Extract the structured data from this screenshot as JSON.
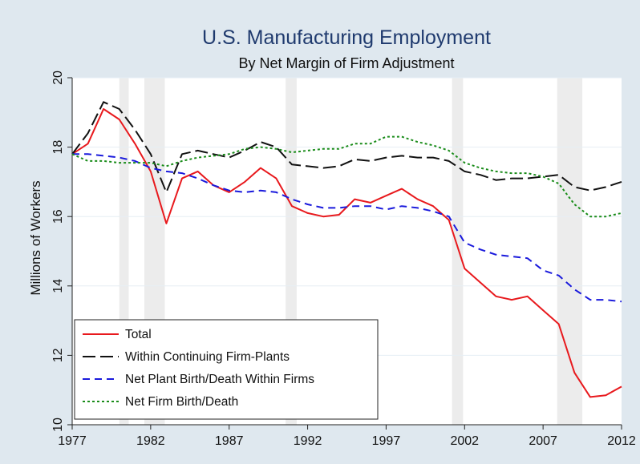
{
  "chart_data": {
    "type": "line",
    "title": "U.S. Manufacturing Employment",
    "subtitle": "By Net Margin of Firm Adjustment",
    "ylabel": "Millions of Workers",
    "xlabel": "",
    "xlim": [
      1977,
      2012
    ],
    "ylim": [
      10,
      20
    ],
    "xticks": [
      "1977",
      "1982",
      "1987",
      "1992",
      "1997",
      "2002",
      "2007",
      "2012"
    ],
    "yticks": [
      "10",
      "12",
      "14",
      "16",
      "18",
      "20"
    ],
    "grid": true,
    "legend_placement": "bottom-left",
    "recessions": [
      [
        1980.0,
        1980.6
      ],
      [
        1981.6,
        1982.9
      ],
      [
        1990.6,
        1991.3
      ],
      [
        2001.2,
        2001.9
      ],
      [
        2007.9,
        2009.5
      ]
    ],
    "x": [
      1977,
      1978,
      1979,
      1980,
      1981,
      1982,
      1983,
      1984,
      1985,
      1986,
      1987,
      1988,
      1989,
      1990,
      1991,
      1992,
      1993,
      1994,
      1995,
      1996,
      1997,
      1998,
      1999,
      2000,
      2001,
      2002,
      2003,
      2004,
      2005,
      2006,
      2007,
      2008,
      2009,
      2010,
      2011,
      2012
    ],
    "series": [
      {
        "name": "Total",
        "color": "#e8191d",
        "dash": "solid",
        "values": [
          17.8,
          18.1,
          19.1,
          18.8,
          18.1,
          17.3,
          15.8,
          17.1,
          17.3,
          16.9,
          16.7,
          17.0,
          17.4,
          17.1,
          16.3,
          16.1,
          16.0,
          16.05,
          16.5,
          16.4,
          16.6,
          16.8,
          16.5,
          16.3,
          15.9,
          14.5,
          14.1,
          13.7,
          13.6,
          13.7,
          13.3,
          12.9,
          11.5,
          10.8,
          10.85,
          11.1
        ]
      },
      {
        "name": "Within Continuing Firm-Plants",
        "color": "#111111",
        "dash": "longdash",
        "values": [
          17.8,
          18.4,
          19.3,
          19.1,
          18.5,
          17.8,
          16.7,
          17.8,
          17.9,
          17.8,
          17.7,
          17.9,
          18.15,
          18.0,
          17.5,
          17.45,
          17.4,
          17.45,
          17.65,
          17.6,
          17.7,
          17.75,
          17.7,
          17.7,
          17.6,
          17.3,
          17.2,
          17.05,
          17.1,
          17.1,
          17.15,
          17.2,
          16.85,
          16.75,
          16.85,
          17.0
        ]
      },
      {
        "name": "Net Plant Birth/Death Within Firms",
        "color": "#1a1adc",
        "dash": "dash",
        "values": [
          17.8,
          17.8,
          17.75,
          17.7,
          17.6,
          17.4,
          17.3,
          17.25,
          17.1,
          16.9,
          16.75,
          16.7,
          16.75,
          16.7,
          16.5,
          16.35,
          16.25,
          16.25,
          16.3,
          16.3,
          16.2,
          16.3,
          16.25,
          16.15,
          16.0,
          15.25,
          15.05,
          14.9,
          14.85,
          14.8,
          14.45,
          14.3,
          13.9,
          13.6,
          13.6,
          13.55
        ]
      },
      {
        "name": "Net Firm Birth/Death",
        "color": "#1a8c1a",
        "dash": "dot",
        "values": [
          17.8,
          17.6,
          17.6,
          17.55,
          17.55,
          17.55,
          17.45,
          17.6,
          17.7,
          17.75,
          17.8,
          17.95,
          18.0,
          17.95,
          17.85,
          17.9,
          17.95,
          17.95,
          18.1,
          18.1,
          18.3,
          18.3,
          18.15,
          18.05,
          17.9,
          17.55,
          17.4,
          17.3,
          17.25,
          17.25,
          17.15,
          16.95,
          16.35,
          16.0,
          16.0,
          16.1
        ]
      }
    ]
  }
}
